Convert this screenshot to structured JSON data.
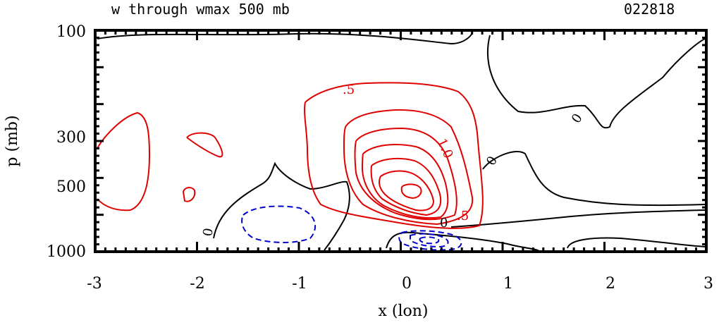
{
  "chart_data": {
    "type": "contour",
    "title": "w through wmax 500 mb",
    "date_label": "022818",
    "xlabel": "x (lon)",
    "ylabel": "p (mb)",
    "xlim": [
      -3,
      3
    ],
    "ylim": [
      100,
      1000
    ],
    "x_ticks": [
      "-3",
      "-2",
      "-1",
      "0",
      "1",
      "2",
      "3"
    ],
    "y_ticks": [
      "100",
      "300",
      "500",
      "1000"
    ],
    "colors": {
      "positive": "#e00000",
      "negative": "#0000cc",
      "zero": "#000000"
    },
    "contour_labels": [
      {
        "text": ".5",
        "color": "#e00000"
      },
      {
        "text": "1.0",
        "color": "#e00000"
      },
      {
        "text": ".5",
        "color": "#e00000"
      },
      {
        "text": "0",
        "color": "#000000"
      },
      {
        "text": "0",
        "color": "#000000"
      },
      {
        "text": "0",
        "color": "#000000"
      },
      {
        "text": "0",
        "color": "#000000"
      }
    ]
  }
}
